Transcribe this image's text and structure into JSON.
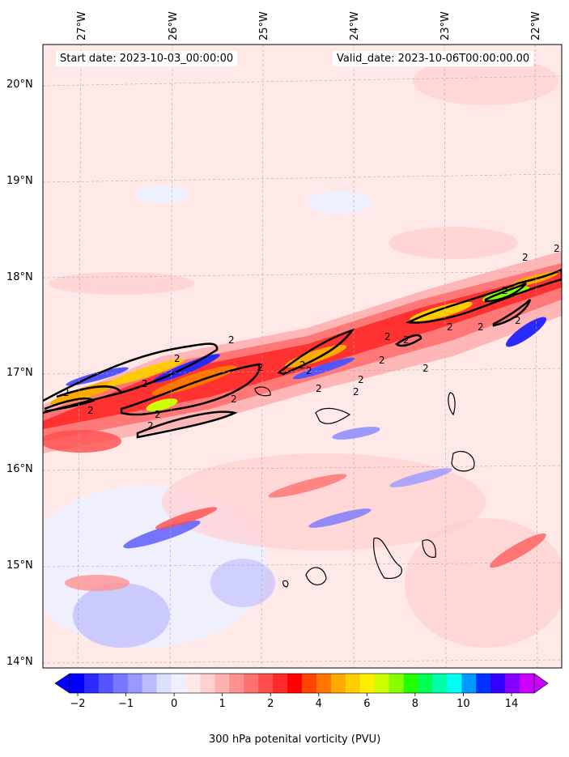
{
  "start_date": "Start date: 2023-10-03_00:00:00",
  "valid_date": "Valid_date: 2023-10-06T00:00:00.00",
  "lon_labels": [
    "27°W",
    "26°W",
    "25°W",
    "24°W",
    "23°W",
    "22°W"
  ],
  "lat_labels": [
    "20°N",
    "19°N",
    "18°N",
    "17°N",
    "16°N",
    "15°N",
    "14°N"
  ],
  "colorbar": {
    "title": "300 hPa potenital vorticity (PVU)",
    "ticks": [
      "−2",
      "−1",
      "0",
      "1",
      "2",
      "4",
      "6",
      "8",
      "10",
      "14"
    ],
    "colors": [
      "#0000ff",
      "#2a2aff",
      "#5555ff",
      "#7777ff",
      "#9999ff",
      "#bbbbff",
      "#dddfff",
      "#eef0ff",
      "#ffe8e8",
      "#ffd0d0",
      "#ffb0b0",
      "#ff9090",
      "#ff7070",
      "#ff4c4c",
      "#ff2a2a",
      "#ff0000",
      "#ff4400",
      "#ff7700",
      "#ffaa00",
      "#ffcc00",
      "#ffee00",
      "#ccff00",
      "#88ff00",
      "#22ff00",
      "#00ff55",
      "#00ffaa",
      "#00ffee",
      "#0099ff",
      "#0033ff",
      "#3300ff",
      "#8800ff",
      "#cc00ff"
    ]
  },
  "contour_label": "2"
}
